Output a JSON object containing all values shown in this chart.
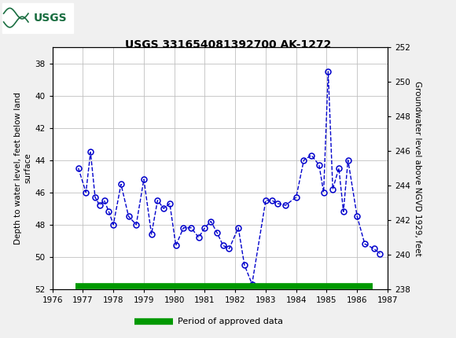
{
  "title": "USGS 331654081392700 AK-1272",
  "ylabel_left": "Depth to water level, feet below land\nsurface",
  "ylabel_right": "Groundwater level above NGVD 1929, feet",
  "ylim_left": [
    52,
    37
  ],
  "ylim_right": [
    238,
    252
  ],
  "xlim": [
    1976,
    1987
  ],
  "xticks": [
    1976,
    1977,
    1978,
    1979,
    1980,
    1981,
    1982,
    1983,
    1984,
    1985,
    1986,
    1987
  ],
  "yticks_left": [
    38,
    40,
    42,
    44,
    46,
    48,
    50,
    52
  ],
  "yticks_right": [
    238,
    240,
    242,
    244,
    246,
    248,
    250,
    252
  ],
  "header_color": "#1a6e41",
  "data_x": [
    1976.85,
    1977.1,
    1977.25,
    1977.4,
    1977.55,
    1977.7,
    1977.85,
    1978.0,
    1978.25,
    1978.5,
    1978.75,
    1979.0,
    1979.25,
    1979.45,
    1979.65,
    1979.85,
    1980.05,
    1980.3,
    1980.55,
    1980.8,
    1981.0,
    1981.2,
    1981.4,
    1981.6,
    1981.8,
    1982.1,
    1982.3,
    1982.55,
    1983.0,
    1983.2,
    1983.4,
    1983.65,
    1984.0,
    1984.25,
    1984.5,
    1984.75,
    1984.9,
    1985.05,
    1985.2,
    1985.4,
    1985.55,
    1985.7,
    1986.0,
    1986.25,
    1986.55,
    1986.75
  ],
  "data_y": [
    44.5,
    46.0,
    43.5,
    46.3,
    46.8,
    46.5,
    47.2,
    48.0,
    45.5,
    47.5,
    48.0,
    45.2,
    48.6,
    46.5,
    47.0,
    46.7,
    49.3,
    48.2,
    48.2,
    48.8,
    48.2,
    47.8,
    48.5,
    49.3,
    49.5,
    48.2,
    50.5,
    51.7,
    46.5,
    46.5,
    46.7,
    46.8,
    46.3,
    44.0,
    43.7,
    44.3,
    46.0,
    38.5,
    45.8,
    44.5,
    47.2,
    44.0,
    47.5,
    49.2,
    49.5,
    49.8
  ],
  "approved_bar_color": "#009900",
  "approved_bar_xstart": 1976.75,
  "approved_bar_xend": 1986.5,
  "line_color": "#0000cc",
  "marker_color": "#0000cc",
  "bg_color": "#f0f0f0",
  "plot_bg": "#ffffff",
  "grid_color": "#c0c0c0"
}
